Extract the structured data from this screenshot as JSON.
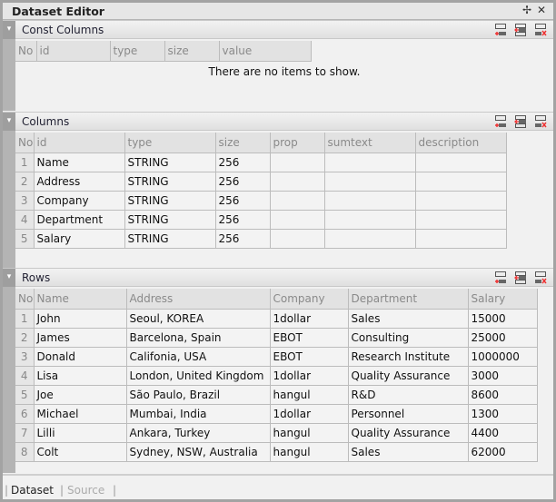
{
  "window": {
    "title": "Dataset Editor",
    "pin_icon": "pin-icon",
    "close_icon": "close-icon"
  },
  "toolbar_icons": [
    "add-row-icon",
    "insert-row-icon",
    "delete-row-icon"
  ],
  "const_columns": {
    "title": "Const Columns",
    "headers": [
      "No",
      "id",
      "type",
      "size",
      "value"
    ],
    "empty_text": "There are no items to show."
  },
  "columns": {
    "title": "Columns",
    "headers": [
      "No",
      "id",
      "type",
      "size",
      "prop",
      "sumtext",
      "description"
    ],
    "rows": [
      [
        "1",
        "Name",
        "STRING",
        "256",
        "",
        "",
        ""
      ],
      [
        "2",
        "Address",
        "STRING",
        "256",
        "",
        "",
        ""
      ],
      [
        "3",
        "Company",
        "STRING",
        "256",
        "",
        "",
        ""
      ],
      [
        "4",
        "Department",
        "STRING",
        "256",
        "",
        "",
        ""
      ],
      [
        "5",
        "Salary",
        "STRING",
        "256",
        "",
        "",
        ""
      ]
    ]
  },
  "rows": {
    "title": "Rows",
    "headers": [
      "No",
      "Name",
      "Address",
      "Company",
      "Department",
      "Salary"
    ],
    "rows": [
      [
        "1",
        "John",
        "Seoul, KOREA",
        "1dollar",
        "Sales",
        "15000"
      ],
      [
        "2",
        "James",
        "Barcelona, Spain",
        "EBOT",
        "Consulting",
        "25000"
      ],
      [
        "3",
        "Donald",
        "Califonia, USA",
        "EBOT",
        "Research Institute",
        "1000000"
      ],
      [
        "4",
        "Lisa",
        "London, United Kingdom",
        "1dollar",
        "Quality Assurance",
        "3000"
      ],
      [
        "5",
        "Joe",
        "São Paulo, Brazil",
        "hangul",
        "R&D",
        "8600"
      ],
      [
        "6",
        "Michael",
        "Mumbai, India",
        "1dollar",
        "Personnel",
        "1300"
      ],
      [
        "7",
        "Lilli",
        "Ankara, Turkey",
        "hangul",
        "Quality Assurance",
        "4400"
      ],
      [
        "8",
        "Colt",
        "Sydney, NSW, Australia",
        "hangul",
        "Sales",
        "62000"
      ]
    ]
  },
  "tabs": [
    {
      "label": "Dataset",
      "active": true
    },
    {
      "label": "Source",
      "active": false
    }
  ]
}
